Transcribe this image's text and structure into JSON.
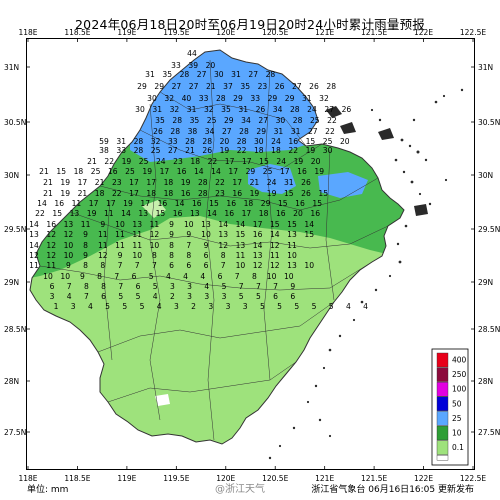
{
  "title": "2024年06月18日20时至06月19日20时24小时累计雨量预报",
  "unit_label": "单位: mm",
  "issuer": "浙江省气象台 06月16日16:05 更新发布",
  "watermark": "@浙江天气",
  "axes": {
    "x_ticks": [
      "118E",
      "118.5E",
      "119E",
      "119.5E",
      "120E",
      "120.5E",
      "121E",
      "121.5E",
      "122E",
      "122.5E"
    ],
    "y_ticks": [
      "31N",
      "30.5N",
      "30N",
      "29.5N",
      "29N",
      "28.5N",
      "28N",
      "27.5N"
    ]
  },
  "legend": {
    "levels": [
      {
        "label": "400",
        "color": "#e8001a"
      },
      {
        "label": "250",
        "color": "#8c0a3c"
      },
      {
        "label": "100",
        "color": "#e200e0"
      },
      {
        "label": "50",
        "color": "#0000d8"
      },
      {
        "label": "25",
        "color": "#5aa7ff"
      },
      {
        "label": "10",
        "color": "#2e9e35"
      },
      {
        "label": "0.1",
        "color": "#9ee27c"
      }
    ]
  },
  "colors": {
    "light_rain": "#9ee27c",
    "moderate": "#48b94f",
    "heavy": "#5aa7ff",
    "storm": "#0000d8",
    "sea_islands": "#2a2a2a"
  },
  "values": [
    [
      "44"
    ],
    [
      "33",
      "39",
      "20"
    ],
    [
      "31",
      "35",
      "28",
      "27",
      "30",
      "31",
      "27",
      "28"
    ],
    [
      "29",
      "29",
      "27",
      "27",
      "21",
      "37",
      "35",
      "23",
      "26",
      "27",
      "26",
      "28"
    ],
    [
      "30",
      "32",
      "40",
      "33",
      "28",
      "29",
      "33",
      "29",
      "29",
      "31",
      "32"
    ],
    [
      "30",
      "31",
      "32",
      "31",
      "32",
      "35",
      "31",
      "26",
      "34",
      "28",
      "24",
      "27",
      "26"
    ],
    [
      "35",
      "28",
      "35",
      "25",
      "29",
      "34",
      "27",
      "30",
      "28",
      "25",
      "22"
    ],
    [
      "26",
      "28",
      "38",
      "34",
      "27",
      "28",
      "29",
      "31",
      "31",
      "27",
      "22"
    ],
    [
      "59",
      "31",
      "28",
      "32",
      "33",
      "28",
      "28",
      "20",
      "28",
      "30",
      "24",
      "16",
      "15",
      "25",
      "20"
    ],
    [
      "38",
      "33",
      "28",
      "25",
      "27",
      "21",
      "26",
      "19",
      "22",
      "18",
      "18",
      "22",
      "19",
      "30"
    ],
    [
      "21",
      "22",
      "19",
      "25",
      "24",
      "23",
      "18",
      "22",
      "17",
      "17",
      "15",
      "24",
      "19",
      "20"
    ],
    [
      "21",
      "15",
      "18",
      "25",
      "16",
      "25",
      "19",
      "17",
      "16",
      "14",
      "14",
      "17",
      "29",
      "25",
      "17",
      "16",
      "19"
    ],
    [
      "21",
      "19",
      "17",
      "21",
      "23",
      "17",
      "17",
      "18",
      "19",
      "28",
      "22",
      "17",
      "21",
      "24",
      "31",
      "26"
    ],
    [
      "21",
      "19",
      "21",
      "18",
      "22",
      "17",
      "18",
      "18",
      "16",
      "28",
      "23",
      "16",
      "19",
      "19",
      "15",
      "26",
      "15"
    ],
    [
      "14",
      "16",
      "11",
      "17",
      "17",
      "19",
      "17",
      "16",
      "14",
      "16",
      "15",
      "16",
      "18",
      "29",
      "15",
      "16",
      "15"
    ],
    [
      "22",
      "15",
      "13",
      "19",
      "11",
      "14",
      "13",
      "15",
      "16",
      "13",
      "14",
      "16",
      "17",
      "18",
      "16",
      "20",
      "16"
    ],
    [
      "14",
      "16",
      "13",
      "11",
      "9",
      "10",
      "13",
      "11",
      "9",
      "10",
      "13",
      "14",
      "14",
      "17",
      "15",
      "15",
      "14"
    ],
    [
      "13",
      "12",
      "12",
      "9",
      "11",
      "11",
      "11",
      "12",
      "9",
      "9",
      "10",
      "13",
      "15",
      "16",
      "14",
      "13",
      "15"
    ],
    [
      "14",
      "12",
      "10",
      "8",
      "11",
      "11",
      "11",
      "10",
      "8",
      "7",
      "9",
      "12",
      "13",
      "14",
      "12",
      "11"
    ],
    [
      "12",
      "12",
      "10",
      "9",
      "12",
      "9",
      "10",
      "8",
      "8",
      "8",
      "6",
      "8",
      "11",
      "13",
      "11",
      "10"
    ],
    [
      "11",
      "11",
      "9",
      "8",
      "8",
      "7",
      "7",
      "7",
      "6",
      "6",
      "6",
      "7",
      "10",
      "12",
      "12",
      "13",
      "10"
    ],
    [
      "10",
      "10",
      "9",
      "8",
      "7",
      "6",
      "5",
      "4",
      "4",
      "4",
      "6",
      "7",
      "8",
      "10",
      "10"
    ],
    [
      "6",
      "7",
      "8",
      "8",
      "7",
      "6",
      "5",
      "3",
      "3",
      "4",
      "5",
      "7",
      "7",
      "7",
      "9"
    ],
    [
      "3",
      "4",
      "7",
      "6",
      "5",
      "5",
      "4",
      "2",
      "3",
      "3",
      "3",
      "5",
      "5",
      "6",
      "6"
    ],
    [
      "1",
      "3",
      "4",
      "5",
      "5",
      "5",
      "4",
      "3",
      "2",
      "3",
      "3",
      "3",
      "5",
      "5",
      "5",
      "5",
      "5",
      "4",
      "4"
    ]
  ]
}
